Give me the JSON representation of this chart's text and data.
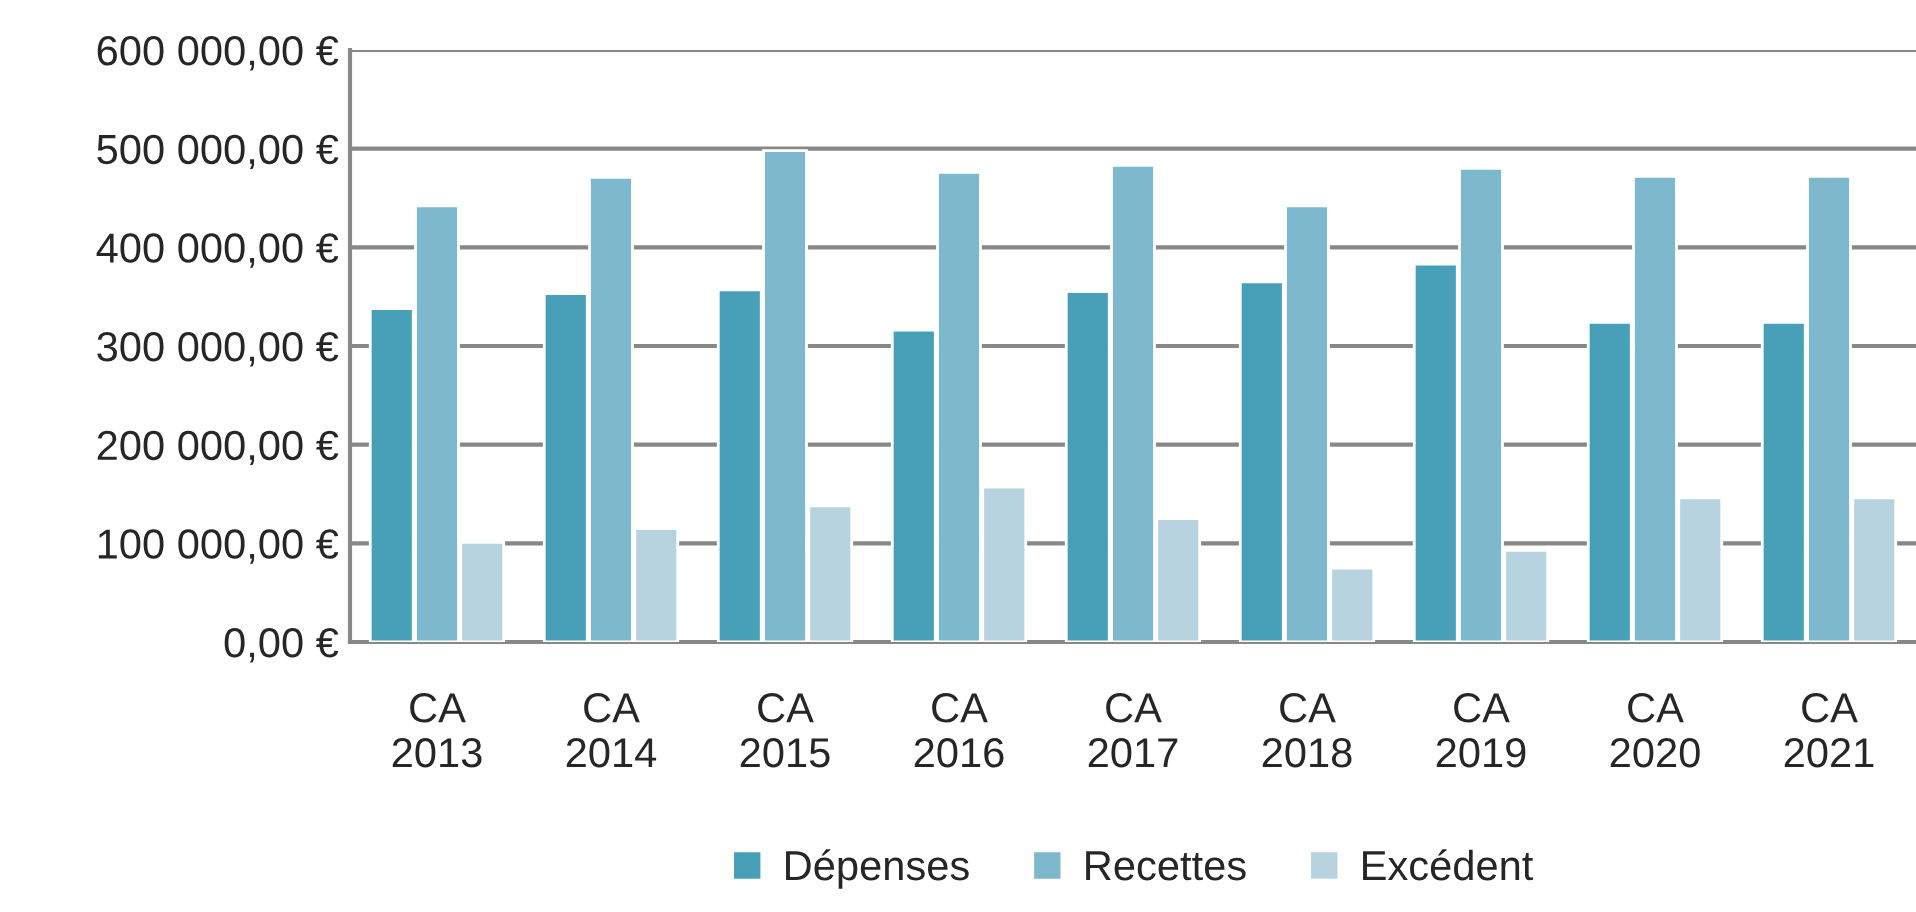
{
  "chart_data": {
    "type": "bar",
    "categories": [
      "CA\n2013",
      "CA\n2014",
      "CA\n2015",
      "CA\n2016",
      "CA\n2017",
      "CA\n2018",
      "CA\n2019",
      "CA\n2020",
      "CA\n2021"
    ],
    "series": [
      {
        "name": "Dépenses",
        "color": "#47a0b8",
        "values": [
          338000,
          353000,
          357000,
          316000,
          355000,
          365000,
          383000,
          324000,
          324000
        ]
      },
      {
        "name": "Recettes",
        "color": "#7db8cd",
        "values": [
          442000,
          471000,
          498000,
          476000,
          483000,
          442000,
          480000,
          472000,
          472000
        ]
      },
      {
        "name": "Excédent",
        "color": "#b7d3df",
        "values": [
          101000,
          115000,
          138000,
          157000,
          125000,
          75000,
          93000,
          146000,
          146000
        ]
      }
    ],
    "ylim": [
      0,
      600000
    ],
    "yticks": [
      {
        "value": 0,
        "label": "0,00 €"
      },
      {
        "value": 100000,
        "label": "100 000,00 €"
      },
      {
        "value": 200000,
        "label": "200 000,00 €"
      },
      {
        "value": 300000,
        "label": "300 000,00 €"
      },
      {
        "value": 400000,
        "label": "400 000,00 €"
      },
      {
        "value": 500000,
        "label": "500 000,00 €"
      },
      {
        "value": 600000,
        "label": "600 000,00 €"
      }
    ],
    "grid": "y",
    "legend": "bottom"
  }
}
